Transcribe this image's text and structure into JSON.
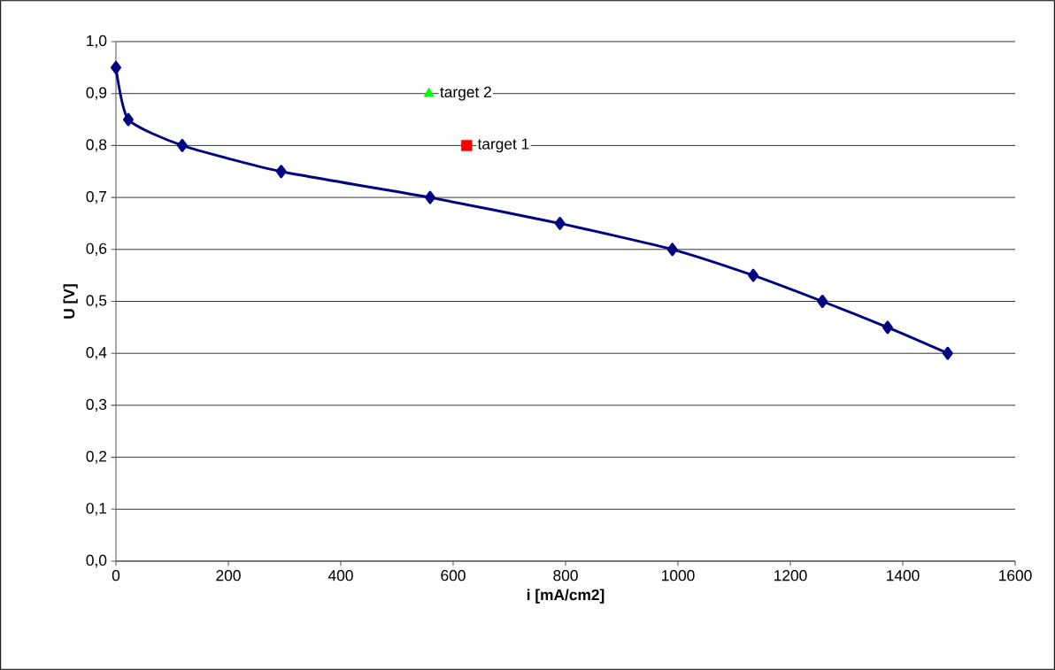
{
  "chart_data": {
    "type": "line",
    "xlabel": "i [mA/cm2]",
    "ylabel": "U [V]",
    "xlim": [
      0,
      1600
    ],
    "xticks": [
      0,
      200,
      400,
      600,
      800,
      1000,
      1200,
      1400,
      1600
    ],
    "ylim": [
      0,
      1.0
    ],
    "yticks": [
      {
        "value": 0.0,
        "label": "0,0"
      },
      {
        "value": 0.1,
        "label": "0,1"
      },
      {
        "value": 0.2,
        "label": "0,2"
      },
      {
        "value": 0.3,
        "label": "0,3"
      },
      {
        "value": 0.4,
        "label": "0,4"
      },
      {
        "value": 0.5,
        "label": "0,5"
      },
      {
        "value": 0.6,
        "label": "0,6"
      },
      {
        "value": 0.7,
        "label": "0,7"
      },
      {
        "value": 0.8,
        "label": "0,8"
      },
      {
        "value": 0.9,
        "label": "0,9"
      },
      {
        "value": 1.0,
        "label": "1,0"
      }
    ],
    "grid": "y",
    "series": [
      {
        "color": "#000080",
        "marker": "diamond",
        "x": [
          0,
          22,
          118,
          294,
          559,
          790,
          990,
          1134,
          1257,
          1373,
          1480
        ],
        "values": [
          0.95,
          0.85,
          0.8,
          0.75,
          0.7,
          0.65,
          0.6,
          0.55,
          0.5,
          0.45,
          0.4
        ]
      },
      {
        "type": "scatter",
        "name": "target 2",
        "color": "#00ff00",
        "marker": "triangle",
        "x": [
          557
        ],
        "values": [
          0.9
        ]
      },
      {
        "type": "scatter",
        "name": "target 1",
        "color": "#ff0000",
        "marker": "square",
        "x": [
          624
        ],
        "values": [
          0.8
        ]
      }
    ]
  }
}
